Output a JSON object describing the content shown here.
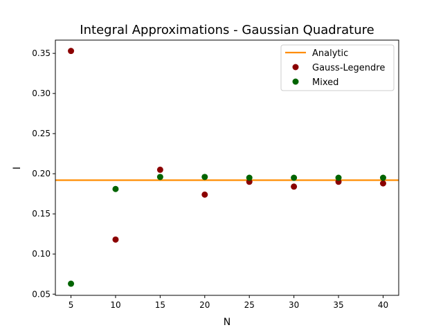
{
  "chart_data": {
    "type": "scatter",
    "title": "Integral Approximations - Gaussian Quadrature",
    "xlabel": "N",
    "ylabel": "I",
    "xlim": [
      3.25,
      41.75
    ],
    "ylim": [
      0.0485,
      0.3665
    ],
    "xticks": [
      5,
      10,
      15,
      20,
      25,
      30,
      35,
      40
    ],
    "yticks": [
      0.05,
      0.1,
      0.15,
      0.2,
      0.25,
      0.3,
      0.35
    ],
    "grid": false,
    "legend_position": "top-right",
    "analytic": {
      "name": "Analytic",
      "value": 0.192,
      "color": "#ff8c00"
    },
    "series": [
      {
        "name": "Gauss-Legendre",
        "color": "#8b0000",
        "x": [
          5,
          10,
          15,
          20,
          25,
          30,
          35,
          40
        ],
        "y": [
          0.353,
          0.118,
          0.205,
          0.174,
          0.19,
          0.184,
          0.19,
          0.188
        ]
      },
      {
        "name": "Mixed",
        "color": "#006400",
        "x": [
          5,
          10,
          15,
          20,
          25,
          30,
          35,
          40
        ],
        "y": [
          0.063,
          0.181,
          0.196,
          0.196,
          0.195,
          0.195,
          0.195,
          0.195
        ]
      }
    ]
  }
}
